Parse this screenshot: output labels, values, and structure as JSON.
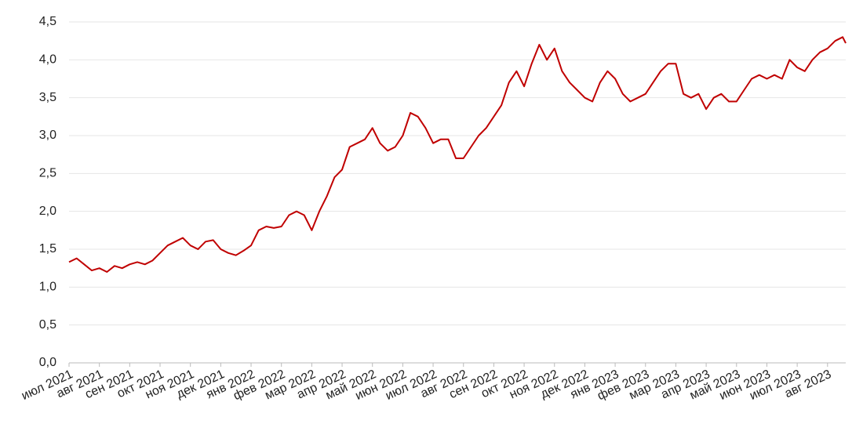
{
  "chart_data": {
    "type": "line",
    "x": [
      0,
      0.25,
      0.5,
      0.75,
      1,
      1.25,
      1.5,
      1.75,
      2,
      2.25,
      2.5,
      2.75,
      3,
      3.25,
      3.5,
      3.75,
      4,
      4.25,
      4.5,
      4.75,
      5,
      5.25,
      5.5,
      5.75,
      6,
      6.25,
      6.5,
      6.75,
      7,
      7.25,
      7.5,
      7.75,
      8,
      8.25,
      8.5,
      8.75,
      9,
      9.25,
      9.5,
      9.75,
      10,
      10.25,
      10.5,
      10.75,
      11,
      11.25,
      11.5,
      11.75,
      12,
      12.25,
      12.5,
      12.75,
      13,
      13.25,
      13.5,
      13.75,
      14,
      14.25,
      14.5,
      14.75,
      15,
      15.25,
      15.5,
      15.75,
      16,
      16.25,
      16.5,
      16.75,
      17,
      17.25,
      17.5,
      17.75,
      18,
      18.25,
      18.5,
      18.75,
      19,
      19.25,
      19.5,
      19.75,
      20,
      20.25,
      20.5,
      20.75,
      21,
      21.25,
      21.5,
      21.75,
      22,
      22.25,
      22.5,
      22.75,
      23,
      23.25,
      23.5,
      23.75,
      24,
      24.25,
      24.5,
      24.75,
      25,
      25.25,
      25.5,
      25.6
    ],
    "series": [
      {
        "name": "series",
        "color": "#c00000",
        "values": [
          1.33,
          1.38,
          1.3,
          1.22,
          1.25,
          1.2,
          1.28,
          1.25,
          1.3,
          1.33,
          1.3,
          1.35,
          1.45,
          1.55,
          1.6,
          1.65,
          1.55,
          1.5,
          1.6,
          1.62,
          1.5,
          1.45,
          1.42,
          1.48,
          1.55,
          1.75,
          1.8,
          1.78,
          1.8,
          1.95,
          2.0,
          1.95,
          1.75,
          2.0,
          2.2,
          2.45,
          2.55,
          2.85,
          2.9,
          2.95,
          3.1,
          2.9,
          2.8,
          2.85,
          3.0,
          3.3,
          3.25,
          3.1,
          2.9,
          2.95,
          2.95,
          2.7,
          2.7,
          2.85,
          3.0,
          3.1,
          3.25,
          3.4,
          3.7,
          3.85,
          3.65,
          3.95,
          4.2,
          4.0,
          4.15,
          3.85,
          3.7,
          3.6,
          3.5,
          3.45,
          3.7,
          3.85,
          3.75,
          3.55,
          3.45,
          3.5,
          3.55,
          3.7,
          3.85,
          3.95,
          3.95,
          3.55,
          3.5,
          3.55,
          3.35,
          3.5,
          3.55,
          3.45,
          3.45,
          3.6,
          3.75,
          3.8,
          3.75,
          3.8,
          3.75,
          4.0,
          3.9,
          3.85,
          4.0,
          4.1,
          4.15,
          4.25,
          4.3,
          4.22
        ]
      }
    ],
    "xlim": [
      0,
      25.6
    ],
    "xticks": [
      {
        "value": 0,
        "label": "июл 2021"
      },
      {
        "value": 1,
        "label": "авг 2021"
      },
      {
        "value": 2,
        "label": "сен 2021"
      },
      {
        "value": 3,
        "label": "окт 2021"
      },
      {
        "value": 4,
        "label": "ноя 2021"
      },
      {
        "value": 5,
        "label": "дек 2021"
      },
      {
        "value": 6,
        "label": "янв 2022"
      },
      {
        "value": 7,
        "label": "фев 2022"
      },
      {
        "value": 8,
        "label": "мар 2022"
      },
      {
        "value": 9,
        "label": "апр 2022"
      },
      {
        "value": 10,
        "label": "май 2022"
      },
      {
        "value": 11,
        "label": "июн 2022"
      },
      {
        "value": 12,
        "label": "июл 2022"
      },
      {
        "value": 13,
        "label": "авг 2022"
      },
      {
        "value": 14,
        "label": "сен 2022"
      },
      {
        "value": 15,
        "label": "окт 2022"
      },
      {
        "value": 16,
        "label": "ноя 2022"
      },
      {
        "value": 17,
        "label": "дек 2022"
      },
      {
        "value": 18,
        "label": "янв 2023"
      },
      {
        "value": 19,
        "label": "фев 2023"
      },
      {
        "value": 20,
        "label": "мар 2023"
      },
      {
        "value": 21,
        "label": "апр 2023"
      },
      {
        "value": 22,
        "label": "май 2023"
      },
      {
        "value": 23,
        "label": "июн 2023"
      },
      {
        "value": 24,
        "label": "июл 2023"
      },
      {
        "value": 25,
        "label": "авг 2023"
      }
    ],
    "ylim": [
      0,
      4.5
    ],
    "yticks": [
      {
        "value": 0,
        "label": "0,0"
      },
      {
        "value": 0.5,
        "label": "0,5"
      },
      {
        "value": 1,
        "label": "1,0"
      },
      {
        "value": 1.5,
        "label": "1,5"
      },
      {
        "value": 2,
        "label": "2,0"
      },
      {
        "value": 2.5,
        "label": "2,5"
      },
      {
        "value": 3,
        "label": "3,0"
      },
      {
        "value": 3.5,
        "label": "3,5"
      },
      {
        "value": 4,
        "label": "4,0"
      },
      {
        "value": 4.5,
        "label": "4,5"
      }
    ],
    "grid": true
  }
}
